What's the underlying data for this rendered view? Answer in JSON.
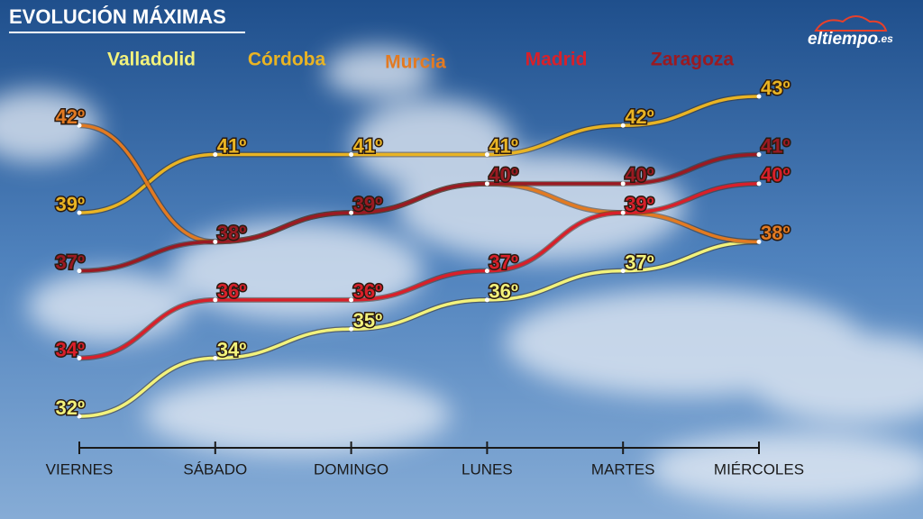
{
  "header": {
    "title": "EVOLUCIÓN MÁXIMAS",
    "logo": "eltiempo",
    "logo_suffix": ".es"
  },
  "chart_data": {
    "type": "line",
    "categories": [
      "VIERNES",
      "SÁBADO",
      "DOMINGO",
      "LUNES",
      "MARTES",
      "MIÉRCOLES"
    ],
    "series": [
      {
        "name": "Valladolid",
        "color": "#f2f27c",
        "values": [
          32,
          34,
          35,
          36,
          37,
          38
        ],
        "value_labels": [
          "32º",
          "34º",
          "35º",
          "36º",
          "37º",
          null
        ]
      },
      {
        "name": "Córdoba",
        "color": "#e9b424",
        "values": [
          39,
          41,
          41,
          41,
          42,
          43
        ],
        "value_labels": [
          "39º",
          "41º",
          "41º",
          "41º",
          "42º",
          "43º"
        ]
      },
      {
        "name": "Murcia",
        "color": "#e27a22",
        "values": [
          42,
          38,
          39,
          40,
          39,
          38
        ],
        "value_labels": [
          "42º",
          null,
          null,
          null,
          null,
          "38º"
        ]
      },
      {
        "name": "Madrid",
        "color": "#d8202a",
        "values": [
          34,
          36,
          36,
          37,
          39,
          40
        ],
        "value_labels": [
          "34º",
          "36º",
          "36º",
          "37º",
          "39º",
          "40º"
        ]
      },
      {
        "name": "Zaragoza",
        "color": "#9a1a22",
        "values": [
          37,
          38,
          39,
          40,
          40,
          41
        ],
        "value_labels": [
          "37º",
          "38º",
          "39º",
          "40º",
          "40º",
          "41º"
        ]
      }
    ]
  }
}
